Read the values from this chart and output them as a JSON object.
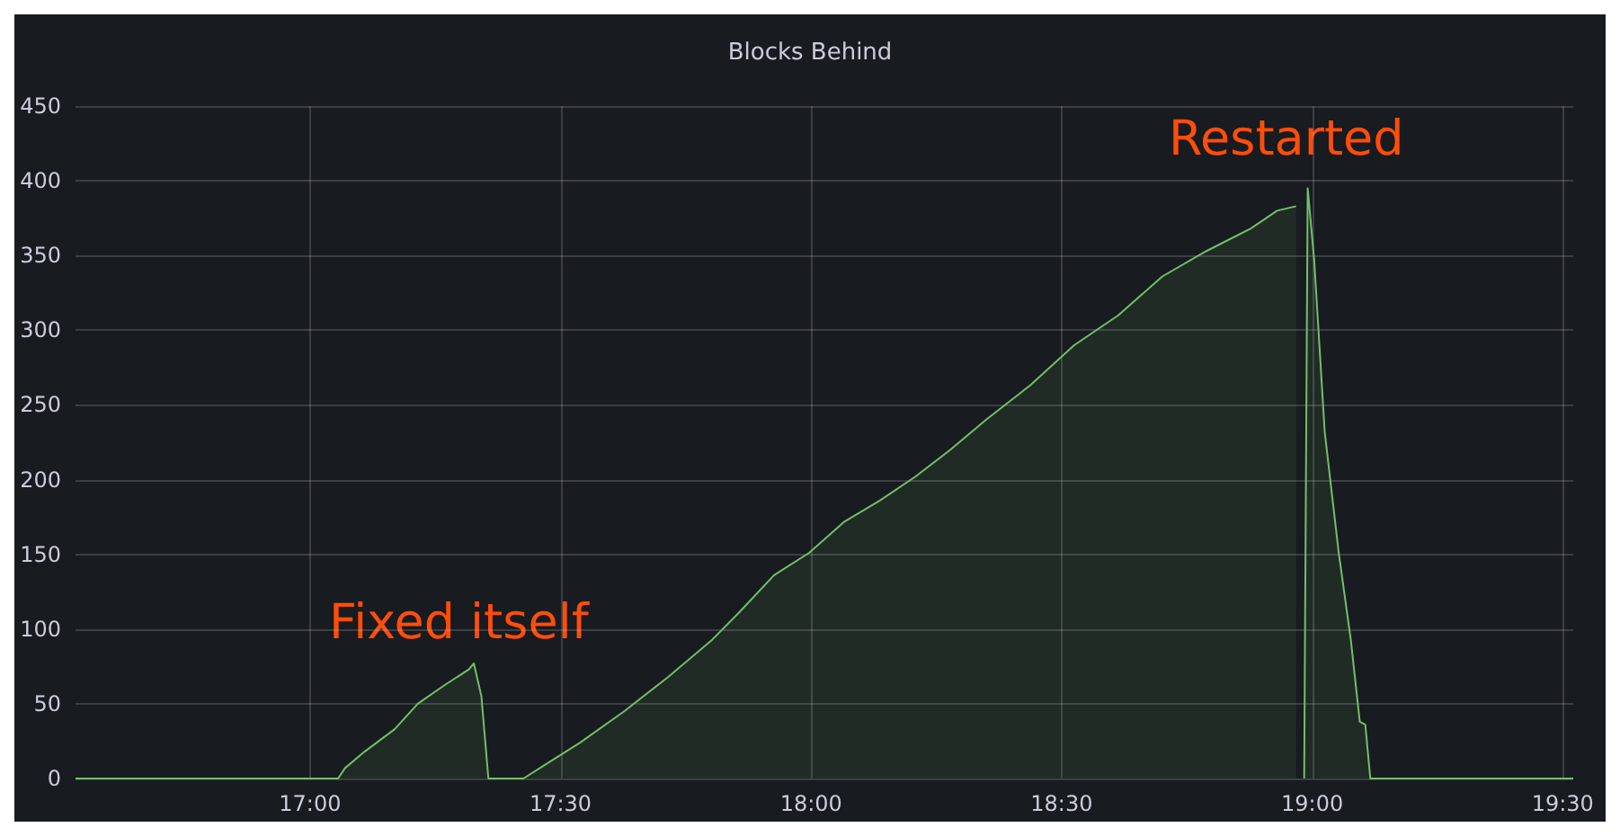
{
  "chart_data": {
    "type": "area",
    "title": "Blocks Behind",
    "x": [
      16.532,
      17.056,
      17.07,
      17.109,
      17.169,
      17.215,
      17.271,
      17.317,
      17.327,
      17.342,
      17.356,
      17.426,
      17.468,
      17.539,
      17.627,
      17.715,
      17.803,
      17.856,
      17.926,
      17.996,
      18.067,
      18.137,
      18.208,
      18.278,
      18.349,
      18.437,
      18.525,
      18.613,
      18.701,
      18.789,
      18.877,
      18.93,
      18.968,
      18.975,
      18.984,
      18.991,
      19.004,
      19.025,
      19.053,
      19.077,
      19.095,
      19.106,
      19.116,
      19.521
    ],
    "series": [
      {
        "color": "#73bf69",
        "values": [
          0,
          0,
          7,
          18,
          33,
          50,
          63,
          73,
          77,
          55,
          0,
          0,
          9,
          24,
          45,
          68,
          93,
          111,
          136,
          151,
          172,
          186,
          202,
          220,
          240,
          263,
          290,
          310,
          336,
          353,
          368,
          380,
          383,
          null,
          0,
          395,
          347,
          232,
          151,
          93,
          38,
          36,
          0,
          0
        ]
      }
    ],
    "xlim": [
      16.532,
      19.521
    ],
    "xticks": [
      {
        "value": 17,
        "label": "17:00"
      },
      {
        "value": 17.5,
        "label": "17:30"
      },
      {
        "value": 18,
        "label": "18:00"
      },
      {
        "value": 18.5,
        "label": "18:30"
      },
      {
        "value": 19,
        "label": "19:00"
      },
      {
        "value": 19.5,
        "label": "19:30"
      }
    ],
    "ylim": [
      0,
      450
    ],
    "yticks": [
      0,
      50,
      100,
      150,
      200,
      250,
      300,
      350,
      400,
      450
    ],
    "grid": true,
    "marker": "none",
    "line_style": "solid",
    "annotations": [
      "Fixed itself",
      "Restarted"
    ]
  }
}
